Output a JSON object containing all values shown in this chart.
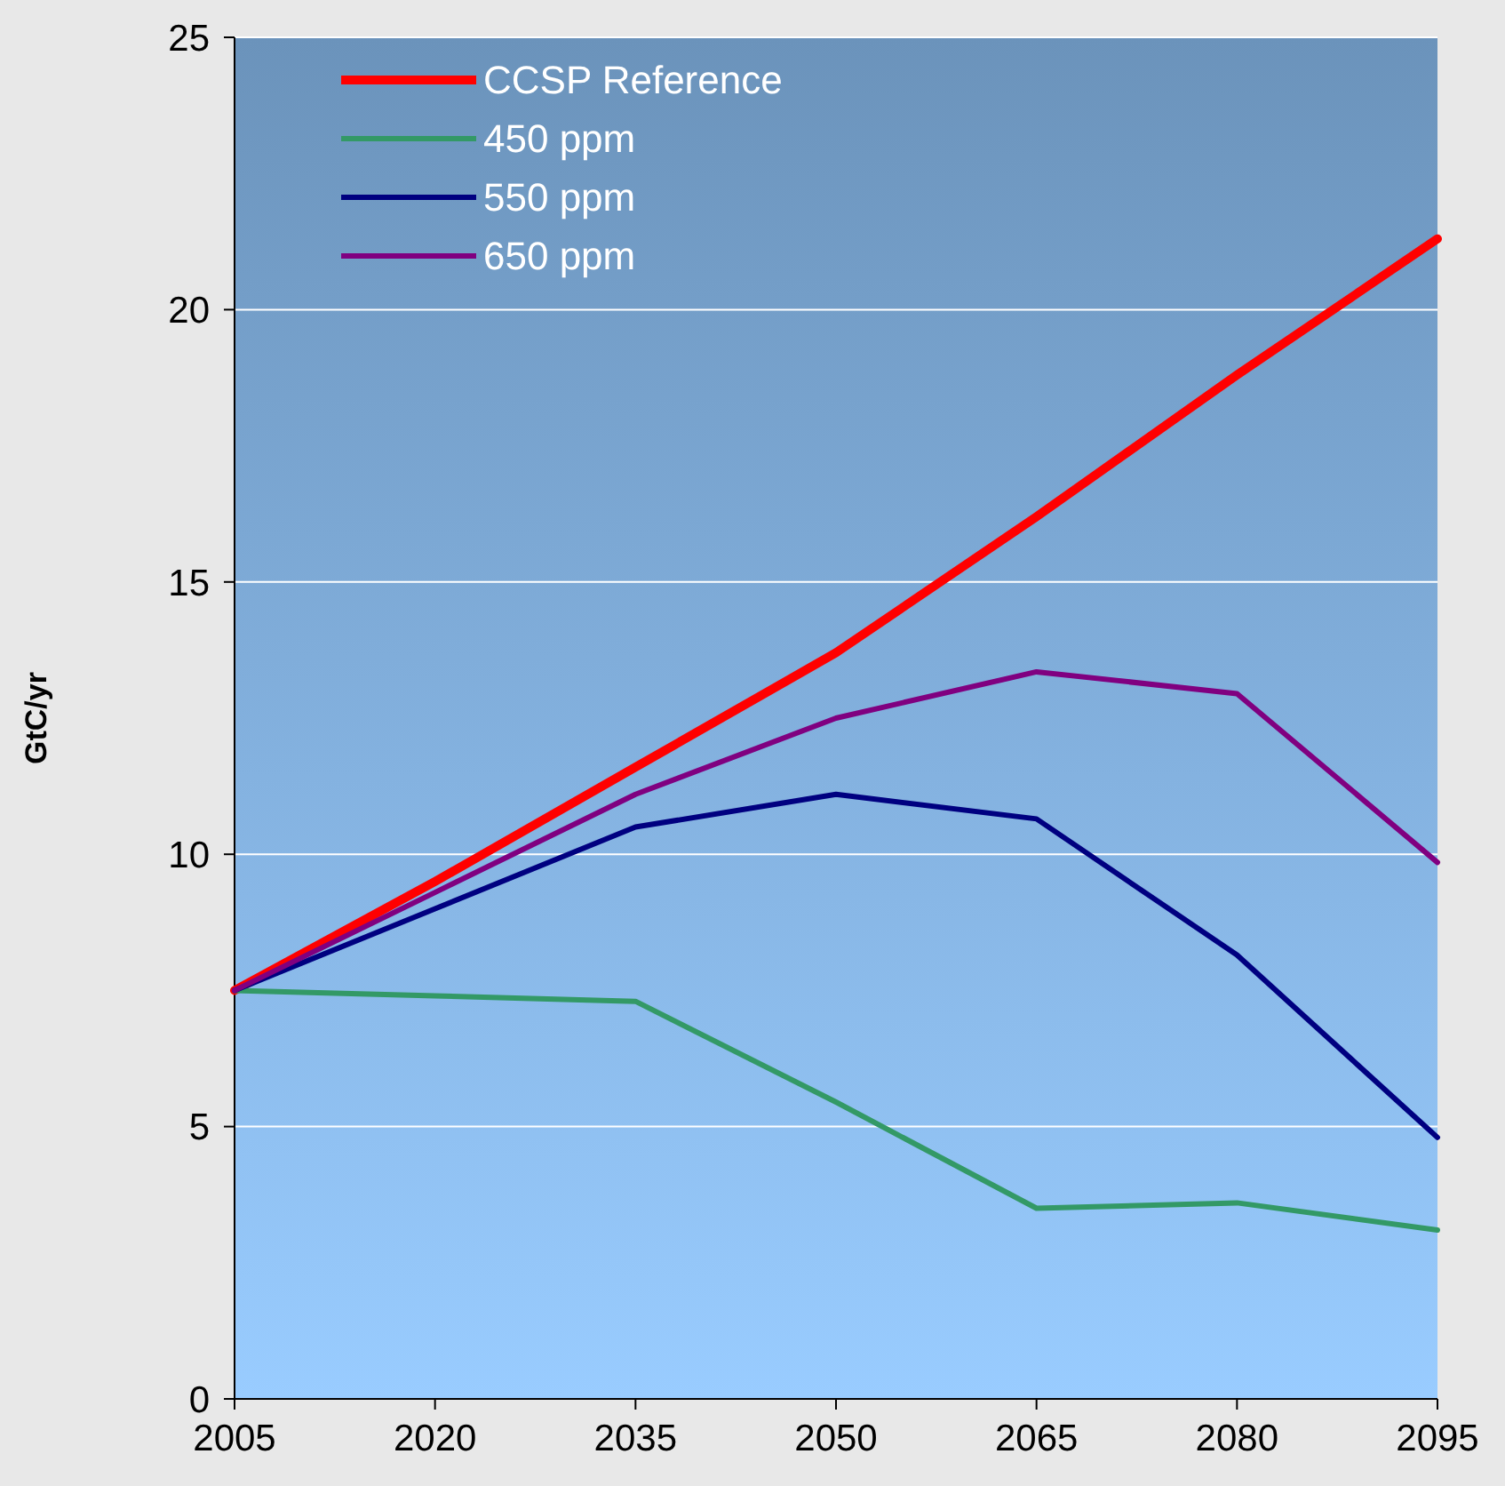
{
  "chart_data": {
    "type": "line",
    "ylabel": "GtC/yr",
    "x": [
      2005,
      2020,
      2035,
      2050,
      2065,
      2080,
      2095
    ],
    "xlim": [
      2005,
      2095
    ],
    "xticks": [
      2005,
      2020,
      2035,
      2050,
      2065,
      2080,
      2095
    ],
    "ylim": [
      0,
      25
    ],
    "yticks": [
      0,
      5,
      10,
      15,
      20,
      25
    ],
    "grid": "y",
    "legend": "top left",
    "marker": "none",
    "line_style": "solid",
    "series": [
      {
        "name": "CCSP Reference",
        "color": "#ff0000",
        "values": [
          7.5,
          9.5,
          11.6,
          13.7,
          16.2,
          18.8,
          21.3
        ]
      },
      {
        "name": "450 ppm",
        "color": "#339966",
        "values": [
          7.5,
          7.4,
          7.3,
          5.45,
          3.5,
          3.6,
          3.1
        ]
      },
      {
        "name": "550 ppm",
        "color": "#000080",
        "values": [
          7.5,
          9.0,
          10.5,
          11.1,
          10.65,
          8.15,
          4.8
        ]
      },
      {
        "name": "650 ppm",
        "color": "#800080",
        "values": [
          7.5,
          9.3,
          11.1,
          12.5,
          13.35,
          12.95,
          9.85
        ]
      }
    ]
  }
}
